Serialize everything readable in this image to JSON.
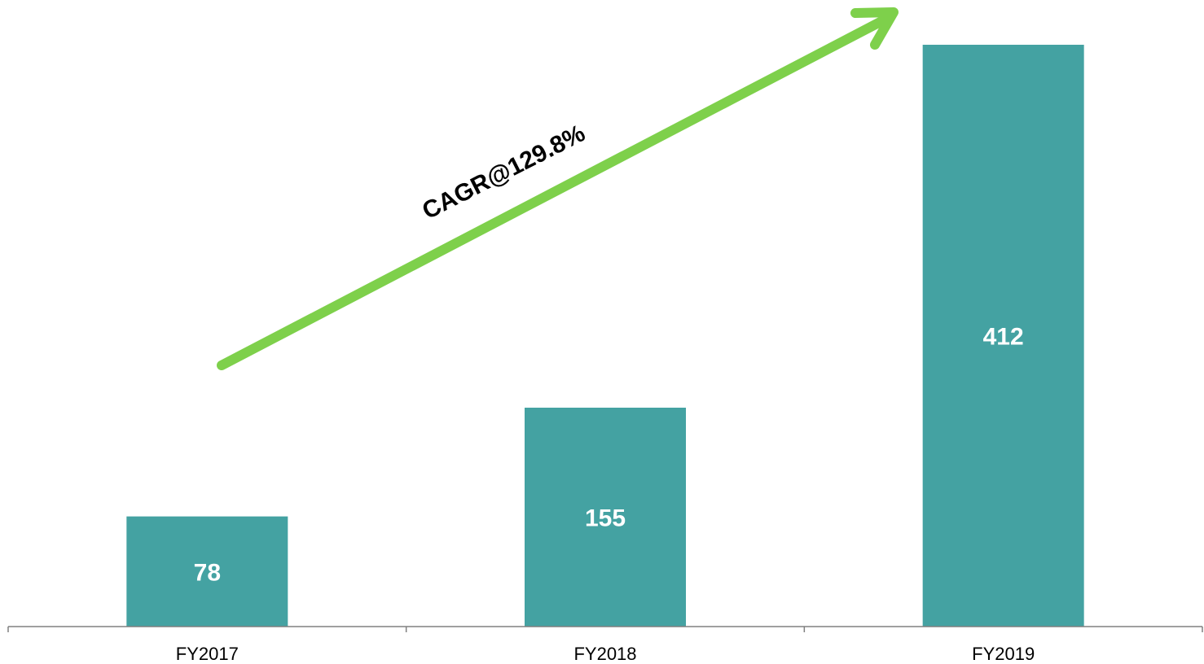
{
  "chart_data": {
    "type": "bar",
    "categories": [
      "FY2017",
      "FY2018",
      "FY2019"
    ],
    "values": [
      78,
      155,
      412
    ],
    "data_labels": [
      "78",
      "155",
      "412"
    ],
    "title": "",
    "xlabel": "",
    "ylabel": "",
    "ylim": [
      0,
      412
    ],
    "grid": false,
    "legend": "none",
    "annotation": {
      "text": "CAGR@129.8%",
      "type": "arrow"
    },
    "colors": {
      "bar": "#44A2A2",
      "arrow": "#7ED04B",
      "axis": "#808080",
      "bar_label": "#FFFFFF",
      "tick_label": "#000000"
    }
  }
}
